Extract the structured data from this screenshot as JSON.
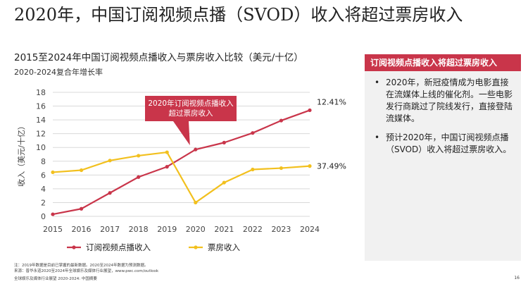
{
  "page": {
    "title": "2020年，中国订阅视频点播（SVOD）收入将超过票房收入",
    "footnote_line1": "注：2019年数据是目前已掌握的最新数据。2020至2024年数据为预测数据。",
    "footnote_line2": "来源：普华永道2020至2024年全球娱乐及媒体行业展望，www.pwc.com/outlook",
    "footer": "全球娱乐及媒体行业展望 2020-2024: 中国摘要",
    "page_number": "16"
  },
  "panel": {
    "header": "订阅视频点播收入将超过票房收入",
    "bullets": [
      "2020年，新冠疫情成为电影直接在流媒体上线的催化剂。一些电影发行商跳过了院线发行，直接登陆流媒体。",
      "预计2020年，中国订阅视频点播（SVOD）收入将超过票房收入。"
    ],
    "bullet_symbol": "•"
  },
  "chart_data": {
    "type": "line",
    "title": "2015至2024年中国订阅视频点播收入与票房收入比较（美元/十亿）",
    "subtitle": "2020-2024复合年增长率",
    "ylabel": "收入（美元/十亿）",
    "xlabel": "",
    "ylim": [
      0,
      18
    ],
    "yticks": [
      0,
      2,
      4,
      6,
      8,
      10,
      12,
      14,
      16,
      18
    ],
    "grid": true,
    "legend_position": "bottom",
    "categories": [
      "2015",
      "2016",
      "2017",
      "2018",
      "2019",
      "2020",
      "2021",
      "2022",
      "2023",
      "2024"
    ],
    "series": [
      {
        "name": "订阅视频点播收入",
        "color": "#c9354a",
        "values": [
          0.3,
          1.1,
          3.4,
          5.7,
          7.2,
          9.7,
          10.7,
          12.1,
          13.9,
          15.4
        ],
        "end_label": "12.41%"
      },
      {
        "name": "票房收入",
        "color": "#f2c01e",
        "values": [
          6.4,
          6.7,
          8.1,
          8.8,
          9.3,
          2.0,
          4.9,
          6.8,
          7.0,
          7.3
        ],
        "end_label": "37.49%"
      }
    ],
    "annotation": {
      "lines": [
        "2020年订阅视频点播收入",
        "超过票房收入"
      ],
      "color": "#c9354a"
    }
  }
}
